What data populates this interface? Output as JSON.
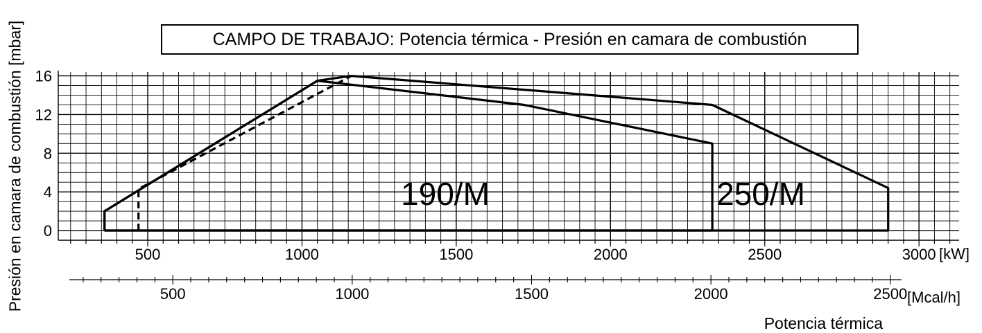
{
  "chart_data": {
    "type": "area",
    "title": "CAMPO DE TRABAJO: Potencia térmica - Presión en camara de combustión",
    "xlabel": "Potencia térmica",
    "ylabel": "Presión en camara de combustión [mbar]",
    "x_unit": "[kW]",
    "x2_unit": "[Mcal/h]",
    "xlim": [
      210,
      3130
    ],
    "ylim": [
      -1,
      16.4
    ],
    "x_ticks": [
      500,
      1000,
      1500,
      2000,
      2500,
      3000
    ],
    "x_tick_labels": [
      "500",
      "1000",
      "1500",
      "2000",
      "2500",
      "3000"
    ],
    "x2_ticks": [
      500,
      1000,
      1500,
      2000,
      2500
    ],
    "x2_tick_labels": [
      "500",
      "1000",
      "1500",
      "2000",
      "2500"
    ],
    "y_ticks": [
      0,
      4,
      8,
      12,
      16
    ],
    "y_tick_labels": [
      "0",
      "4",
      "8",
      "12",
      "16"
    ],
    "grid": true,
    "series": [
      {
        "name": "190/M",
        "x": [
          360,
          360,
          1050,
          1720,
          2330,
          2330,
          360
        ],
        "y": [
          0,
          2,
          15.5,
          13,
          9,
          0,
          0
        ]
      },
      {
        "name": "250/M",
        "x": [
          360,
          360,
          1050,
          1160,
          2330,
          2900,
          2900,
          360
        ],
        "y": [
          0,
          2,
          15.5,
          16,
          13,
          4.4,
          0,
          0
        ]
      },
      {
        "name": "",
        "dashed": true,
        "x": [
          470,
          470,
          1160
        ],
        "y": [
          0,
          4.3,
          16
        ]
      }
    ]
  }
}
